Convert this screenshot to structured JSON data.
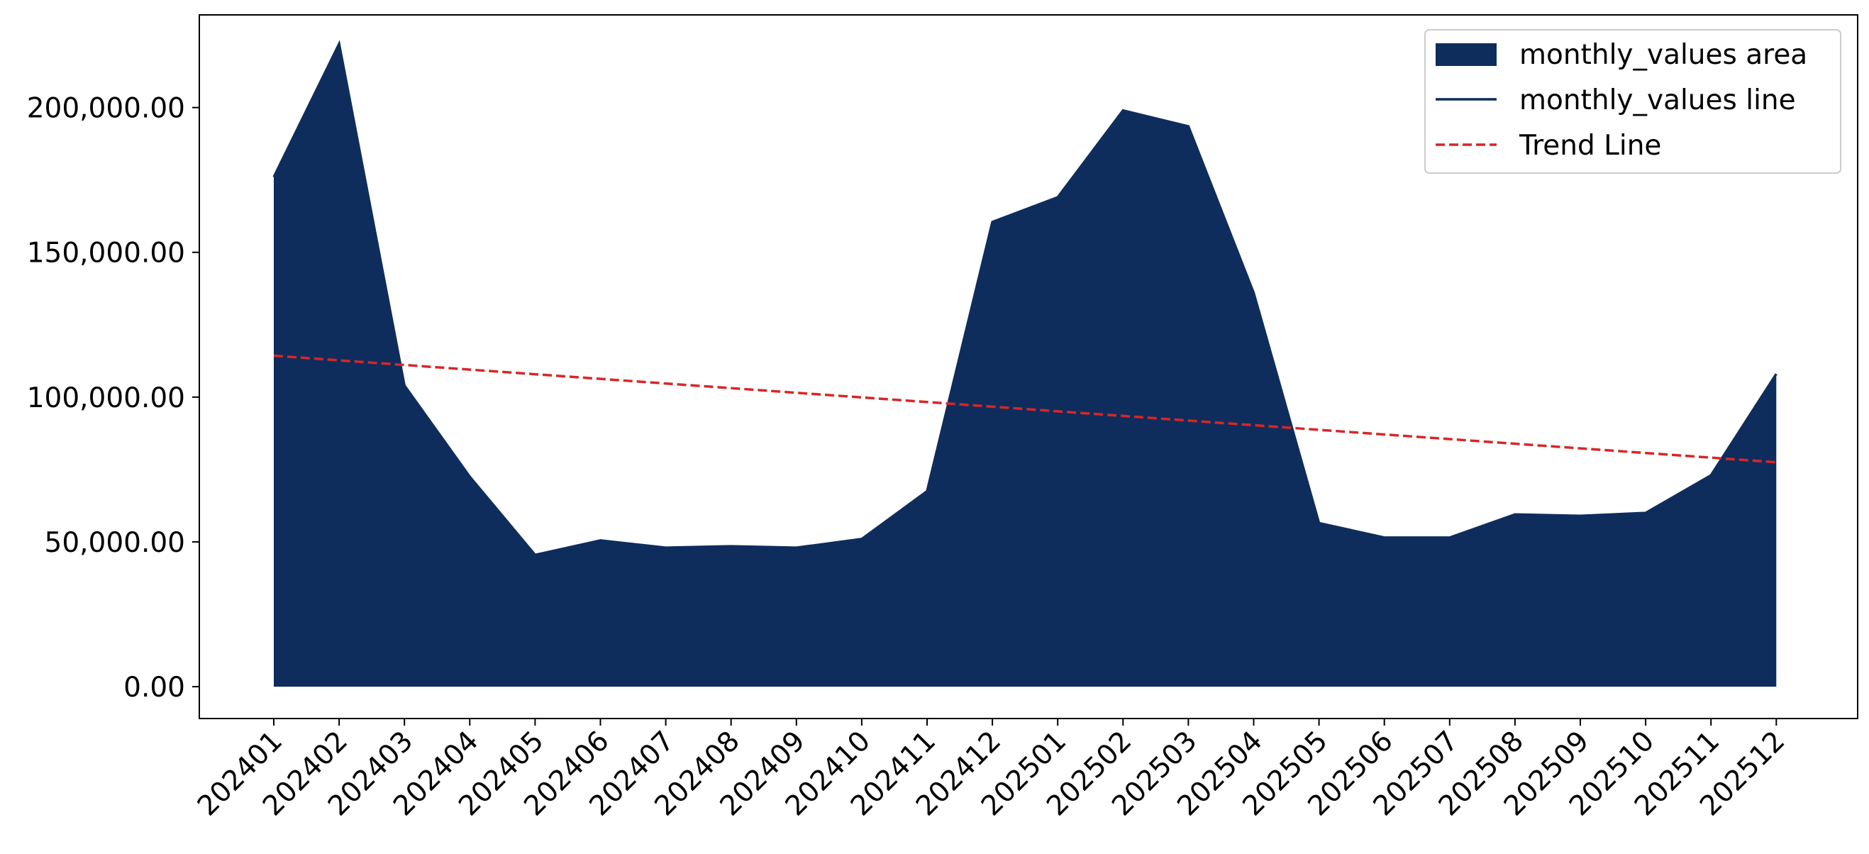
{
  "chart_data": {
    "type": "area",
    "categories": [
      "202401",
      "202402",
      "202403",
      "202404",
      "202405",
      "202406",
      "202407",
      "202408",
      "202409",
      "202410",
      "202411",
      "202412",
      "202501",
      "202502",
      "202503",
      "202504",
      "202505",
      "202506",
      "202507",
      "202508",
      "202509",
      "202510",
      "202511",
      "202512"
    ],
    "series": [
      {
        "name": "monthly_values area",
        "kind": "area",
        "color": "#0f2d5c",
        "values": [
          176000,
          222000,
          104000,
          72500,
          45500,
          50500,
          48000,
          48500,
          48000,
          51000,
          67500,
          160500,
          169000,
          199000,
          193500,
          136000,
          56500,
          51500,
          51500,
          59500,
          59000,
          60000,
          73000,
          108000
        ]
      },
      {
        "name": "monthly_values line",
        "kind": "line",
        "color": "#0f2d5c",
        "values": [
          176000,
          222000,
          104000,
          72500,
          45500,
          50500,
          48000,
          48500,
          48000,
          51000,
          67500,
          160500,
          169000,
          199000,
          193500,
          136000,
          56500,
          51500,
          51500,
          59500,
          59000,
          60000,
          73000,
          108000
        ]
      },
      {
        "name": "Trend Line",
        "kind": "trend",
        "color": "#d62728",
        "style": "dashed",
        "start": 114300,
        "end": 77500
      }
    ],
    "ylim": [
      -11000,
      232000
    ],
    "yticks": [
      0,
      50000,
      100000,
      150000,
      200000
    ],
    "ytick_labels": [
      "0.00",
      "50,000.00",
      "100,000.00",
      "150,000.00",
      "200,000.00"
    ],
    "title": "",
    "xlabel": "",
    "ylabel": "",
    "grid": false,
    "legend": "top-right"
  }
}
